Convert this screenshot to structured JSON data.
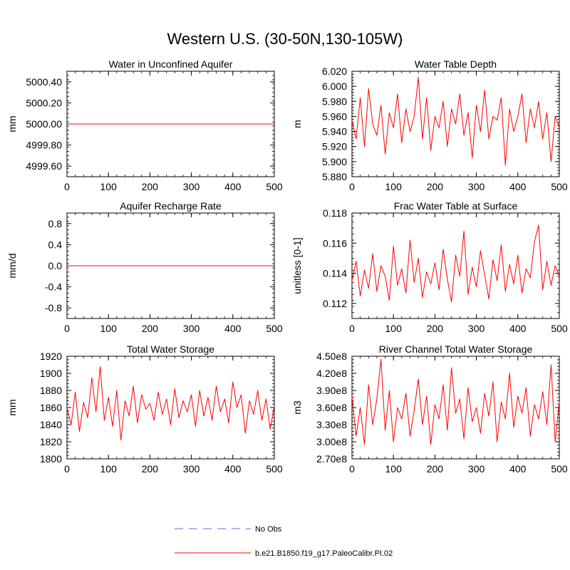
{
  "figure": {
    "title": "Western U.S. (30-50N,130-105W)",
    "line_color": "#ff0000",
    "obs_color": "#9999ee"
  },
  "legend": {
    "items": [
      {
        "label": "No Obs",
        "style": "dashed",
        "color": "#9999ee"
      },
      {
        "label": "b.e21.B1850.f19_g17.PaleoCalibr.PI.02",
        "style": "solid",
        "color": "#ff0000"
      }
    ]
  },
  "chart_data": [
    {
      "type": "line",
      "title": "Water in Unconfined Aquifer",
      "xlabel": "",
      "ylabel": "mm",
      "xlim": [
        0,
        500
      ],
      "ylim": [
        4999.5,
        5000.5
      ],
      "x_ticks": [
        0,
        100,
        200,
        300,
        400,
        500
      ],
      "y_ticks": [
        4999.6,
        4999.8,
        5000.0,
        5000.2,
        5000.4
      ],
      "y_tick_labels": [
        "4999.60",
        "4999.80",
        "5000.00",
        "5000.20",
        "5000.40"
      ],
      "series": [
        {
          "x": [
            0,
            500
          ],
          "y": [
            5000.0,
            5000.0
          ]
        }
      ]
    },
    {
      "type": "line",
      "title": "Water Table Depth",
      "xlabel": "",
      "ylabel": "m",
      "xlim": [
        0,
        500
      ],
      "ylim": [
        5.88,
        6.02
      ],
      "x_ticks": [
        0,
        100,
        200,
        300,
        400,
        500
      ],
      "y_ticks": [
        5.88,
        5.9,
        5.92,
        5.94,
        5.96,
        5.98,
        6.0,
        6.02
      ],
      "y_tick_labels": [
        "5.880",
        "5.900",
        "5.920",
        "5.940",
        "5.960",
        "5.980",
        "6.000",
        "6.020"
      ],
      "series": [
        {
          "x": [
            0,
            10,
            20,
            30,
            40,
            50,
            60,
            70,
            80,
            90,
            100,
            110,
            120,
            130,
            140,
            150,
            160,
            170,
            180,
            190,
            200,
            210,
            220,
            230,
            240,
            250,
            260,
            270,
            280,
            290,
            300,
            310,
            320,
            330,
            340,
            350,
            360,
            370,
            380,
            390,
            400,
            410,
            420,
            430,
            440,
            450,
            460,
            470,
            480,
            490,
            500
          ],
          "y": [
            5.955,
            5.93,
            5.985,
            5.92,
            5.997,
            5.95,
            5.935,
            5.975,
            5.91,
            5.965,
            5.945,
            5.99,
            5.925,
            5.97,
            5.94,
            5.96,
            6.012,
            5.93,
            5.985,
            5.915,
            5.96,
            5.945,
            5.98,
            5.92,
            5.97,
            5.95,
            5.99,
            5.935,
            5.965,
            5.905,
            5.975,
            5.94,
            5.995,
            5.93,
            5.96,
            5.955,
            5.985,
            5.895,
            5.97,
            5.94,
            5.96,
            5.99,
            5.925,
            5.97,
            5.945,
            5.98,
            5.93,
            5.965,
            5.9,
            5.96,
            5.945
          ]
        }
      ]
    },
    {
      "type": "line",
      "title": "Aquifer Recharge Rate",
      "xlabel": "",
      "ylabel": "mm/d",
      "xlim": [
        0,
        500
      ],
      "ylim": [
        -1.0,
        1.0
      ],
      "x_ticks": [
        0,
        100,
        200,
        300,
        400,
        500
      ],
      "y_ticks": [
        -0.8,
        -0.4,
        0.0,
        0.4,
        0.8
      ],
      "y_tick_labels": [
        "-0.8",
        "-0.4",
        "0.0",
        "0.4",
        "0.8"
      ],
      "series": [
        {
          "x": [
            0,
            500
          ],
          "y": [
            0.0,
            0.0
          ]
        }
      ]
    },
    {
      "type": "line",
      "title": "Frac Water Table at Surface",
      "xlabel": "",
      "ylabel": "unitless [0-1]",
      "xlim": [
        0,
        500
      ],
      "ylim": [
        0.111,
        0.118
      ],
      "x_ticks": [
        0,
        100,
        200,
        300,
        400,
        500
      ],
      "y_ticks": [
        0.112,
        0.114,
        0.116,
        0.118
      ],
      "y_tick_labels": [
        "0.112",
        "0.114",
        "0.116",
        "0.118"
      ],
      "series": [
        {
          "x": [
            0,
            10,
            20,
            30,
            40,
            50,
            60,
            70,
            80,
            90,
            100,
            110,
            120,
            130,
            140,
            150,
            160,
            170,
            180,
            190,
            200,
            210,
            220,
            230,
            240,
            250,
            260,
            270,
            280,
            290,
            300,
            310,
            320,
            330,
            340,
            350,
            360,
            370,
            380,
            390,
            400,
            410,
            420,
            430,
            440,
            450,
            460,
            470,
            480,
            490,
            500
          ],
          "y": [
            0.1135,
            0.1148,
            0.1125,
            0.1142,
            0.113,
            0.1153,
            0.1128,
            0.1145,
            0.1138,
            0.1122,
            0.1158,
            0.1132,
            0.1143,
            0.1127,
            0.1162,
            0.1134,
            0.115,
            0.1124,
            0.1141,
            0.1133,
            0.1147,
            0.1129,
            0.1156,
            0.1136,
            0.1121,
            0.1152,
            0.1138,
            0.1168,
            0.1126,
            0.1144,
            0.1131,
            0.1155,
            0.1139,
            0.1123,
            0.1149,
            0.1135,
            0.1159,
            0.1128,
            0.1146,
            0.1133,
            0.1152,
            0.1127,
            0.1143,
            0.1137,
            0.1161,
            0.1172,
            0.1129,
            0.1148,
            0.1132,
            0.1145,
            0.1138
          ]
        }
      ]
    },
    {
      "type": "line",
      "title": "Total Water Storage",
      "xlabel": "",
      "ylabel": "mm",
      "xlim": [
        0,
        500
      ],
      "ylim": [
        1800,
        1920
      ],
      "x_ticks": [
        0,
        100,
        200,
        300,
        400,
        500
      ],
      "y_ticks": [
        1800,
        1820,
        1840,
        1860,
        1880,
        1900,
        1920
      ],
      "y_tick_labels": [
        "1800",
        "1820",
        "1840",
        "1860",
        "1880",
        "1900",
        "1920"
      ],
      "series": [
        {
          "x": [
            0,
            10,
            20,
            30,
            40,
            50,
            60,
            70,
            80,
            90,
            100,
            110,
            120,
            130,
            140,
            150,
            160,
            170,
            180,
            190,
            200,
            210,
            220,
            230,
            240,
            250,
            260,
            270,
            280,
            290,
            300,
            310,
            320,
            330,
            340,
            350,
            360,
            370,
            380,
            390,
            400,
            410,
            420,
            430,
            440,
            450,
            460,
            470,
            480,
            490,
            500
          ],
          "y": [
            1860,
            1840,
            1878,
            1832,
            1866,
            1848,
            1895,
            1855,
            1908,
            1845,
            1872,
            1838,
            1880,
            1822,
            1868,
            1850,
            1885,
            1842,
            1875,
            1858,
            1865,
            1845,
            1878,
            1852,
            1870,
            1840,
            1882,
            1848,
            1868,
            1855,
            1875,
            1838,
            1880,
            1850,
            1872,
            1845,
            1885,
            1855,
            1870,
            1842,
            1890,
            1860,
            1875,
            1830,
            1868,
            1852,
            1880,
            1845,
            1870,
            1835,
            1862
          ]
        }
      ]
    },
    {
      "type": "line",
      "title": "River Channel Total Water Storage",
      "xlabel": "",
      "ylabel": "m3",
      "xlim": [
        0,
        500
      ],
      "ylim": [
        270000000,
        450000000
      ],
      "x_ticks": [
        0,
        100,
        200,
        300,
        400,
        500
      ],
      "y_ticks": [
        270000000,
        300000000,
        330000000,
        360000000,
        390000000,
        420000000,
        450000000
      ],
      "y_tick_labels": [
        "2.70e8",
        "3.00e8",
        "3.30e8",
        "3.60e8",
        "3.90e8",
        "4.20e8",
        "4.50e8"
      ],
      "series": [
        {
          "x": [
            0,
            10,
            20,
            30,
            40,
            50,
            60,
            70,
            80,
            90,
            100,
            110,
            120,
            130,
            140,
            150,
            160,
            170,
            180,
            190,
            200,
            210,
            220,
            230,
            240,
            250,
            260,
            270,
            280,
            290,
            300,
            310,
            320,
            330,
            340,
            350,
            360,
            370,
            380,
            390,
            400,
            410,
            420,
            430,
            440,
            450,
            460,
            470,
            480,
            490,
            500
          ],
          "y": [
            380000000,
            310000000,
            360000000,
            295000000,
            400000000,
            330000000,
            375000000,
            445000000,
            320000000,
            390000000,
            300000000,
            360000000,
            340000000,
            385000000,
            310000000,
            355000000,
            410000000,
            330000000,
            380000000,
            295000000,
            365000000,
            340000000,
            400000000,
            320000000,
            430000000,
            350000000,
            375000000,
            305000000,
            395000000,
            335000000,
            360000000,
            315000000,
            385000000,
            345000000,
            405000000,
            300000000,
            370000000,
            340000000,
            420000000,
            325000000,
            380000000,
            350000000,
            395000000,
            310000000,
            365000000,
            340000000,
            388000000,
            330000000,
            435000000,
            300000000,
            370000000
          ]
        }
      ]
    }
  ]
}
